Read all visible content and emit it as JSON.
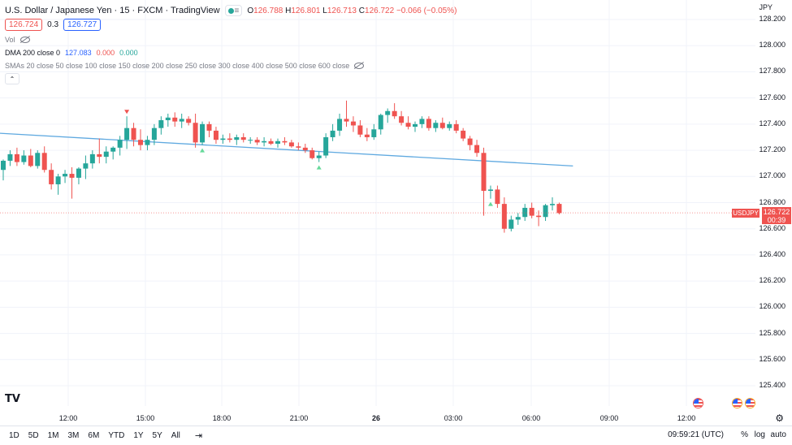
{
  "header": {
    "title": "U.S. Dollar / Japanese Yen · 15 · FXCM · TradingView",
    "lines_glyph": "≡",
    "ohlc": {
      "o_lbl": "O",
      "o": "126.788",
      "h_lbl": "H",
      "h": "126.801",
      "l_lbl": "L",
      "l": "126.713",
      "c_lbl": "C",
      "c": "126.722",
      "change": "−0.066 (−0.05%)"
    },
    "bid": "126.724",
    "spread": "0.3",
    "ask": "126.727",
    "vol_label": "Vol",
    "dma": {
      "label": "DMA 200 close 0",
      "v1": "127.083",
      "v2": "0.000",
      "v3": "0.000"
    },
    "smas_label": "SMAs 20 close 50 close 100 close 150 close 200 close 250 close 300 close 400 close 500 close 600 close",
    "collapse_glyph": "⌃"
  },
  "price_axis": {
    "currency": "JPY",
    "labels": [
      "128.200",
      "128.000",
      "127.800",
      "127.600",
      "127.400",
      "127.200",
      "127.000",
      "126.800",
      "126.600",
      "126.400",
      "126.200",
      "126.000",
      "125.800",
      "125.600",
      "125.400"
    ]
  },
  "time_axis": {
    "labels": [
      "12:00",
      "15:00",
      "18:00",
      "21:00",
      "26",
      "03:00",
      "06:00",
      "09:00",
      "12:00"
    ]
  },
  "current_price": {
    "symbol": "USDJPY",
    "price": "126.722",
    "countdown": "00:39"
  },
  "logo": "TV",
  "bottom": {
    "ranges": [
      "1D",
      "5D",
      "1M",
      "3M",
      "6M",
      "YTD",
      "1Y",
      "5Y",
      "All"
    ],
    "time": "09:59:21 (UTC)",
    "pct": "%",
    "log": "log",
    "auto": "auto"
  },
  "colors": {
    "up": "#26a69a",
    "down": "#ef5350",
    "dma": "#5fa9e0",
    "grid": "#f0f3fa"
  },
  "chart_data": {
    "type": "candlestick",
    "symbol": "USDJPY",
    "interval": "15",
    "ylim": [
      125.3,
      128.3
    ],
    "x_ticks": [
      "12:00",
      "15:00",
      "18:00",
      "21:00",
      "26",
      "03:00",
      "06:00",
      "09:00",
      "12:00"
    ],
    "candles": [
      {
        "o": 127.05,
        "h": 127.13,
        "l": 126.97,
        "c": 127.12
      },
      {
        "o": 127.12,
        "h": 127.2,
        "l": 127.08,
        "c": 127.17
      },
      {
        "o": 127.17,
        "h": 127.22,
        "l": 127.08,
        "c": 127.11
      },
      {
        "o": 127.11,
        "h": 127.2,
        "l": 127.09,
        "c": 127.16
      },
      {
        "o": 127.16,
        "h": 127.21,
        "l": 127.07,
        "c": 127.08
      },
      {
        "o": 127.08,
        "h": 127.2,
        "l": 127.06,
        "c": 127.18
      },
      {
        "o": 127.18,
        "h": 127.23,
        "l": 127.03,
        "c": 127.05
      },
      {
        "o": 127.05,
        "h": 127.1,
        "l": 126.9,
        "c": 126.94
      },
      {
        "o": 126.94,
        "h": 127.02,
        "l": 126.86,
        "c": 127.0
      },
      {
        "o": 127.0,
        "h": 127.05,
        "l": 126.95,
        "c": 127.02
      },
      {
        "o": 127.02,
        "h": 127.07,
        "l": 126.83,
        "c": 126.99
      },
      {
        "o": 126.99,
        "h": 127.07,
        "l": 126.94,
        "c": 127.06
      },
      {
        "o": 127.06,
        "h": 127.16,
        "l": 126.98,
        "c": 127.1
      },
      {
        "o": 127.1,
        "h": 127.2,
        "l": 127.06,
        "c": 127.17
      },
      {
        "o": 127.17,
        "h": 127.29,
        "l": 127.1,
        "c": 127.15
      },
      {
        "o": 127.15,
        "h": 127.23,
        "l": 127.1,
        "c": 127.19
      },
      {
        "o": 127.19,
        "h": 127.23,
        "l": 127.13,
        "c": 127.22
      },
      {
        "o": 127.22,
        "h": 127.31,
        "l": 127.16,
        "c": 127.28
      },
      {
        "o": 127.28,
        "h": 127.46,
        "l": 127.21,
        "c": 127.37
      },
      {
        "o": 127.37,
        "h": 127.41,
        "l": 127.23,
        "c": 127.28
      },
      {
        "o": 127.28,
        "h": 127.36,
        "l": 127.2,
        "c": 127.24
      },
      {
        "o": 127.24,
        "h": 127.31,
        "l": 127.2,
        "c": 127.28
      },
      {
        "o": 127.28,
        "h": 127.4,
        "l": 127.24,
        "c": 127.37
      },
      {
        "o": 127.37,
        "h": 127.46,
        "l": 127.32,
        "c": 127.43
      },
      {
        "o": 127.43,
        "h": 127.48,
        "l": 127.38,
        "c": 127.45
      },
      {
        "o": 127.45,
        "h": 127.49,
        "l": 127.38,
        "c": 127.42
      },
      {
        "o": 127.42,
        "h": 127.48,
        "l": 127.37,
        "c": 127.44
      },
      {
        "o": 127.44,
        "h": 127.46,
        "l": 127.39,
        "c": 127.41
      },
      {
        "o": 127.41,
        "h": 127.48,
        "l": 127.22,
        "c": 127.26
      },
      {
        "o": 127.26,
        "h": 127.42,
        "l": 127.24,
        "c": 127.4
      },
      {
        "o": 127.4,
        "h": 127.42,
        "l": 127.3,
        "c": 127.35
      },
      {
        "o": 127.35,
        "h": 127.38,
        "l": 127.25,
        "c": 127.28
      },
      {
        "o": 127.28,
        "h": 127.32,
        "l": 127.25,
        "c": 127.29
      },
      {
        "o": 127.29,
        "h": 127.33,
        "l": 127.26,
        "c": 127.28
      },
      {
        "o": 127.28,
        "h": 127.32,
        "l": 127.24,
        "c": 127.3
      },
      {
        "o": 127.3,
        "h": 127.33,
        "l": 127.26,
        "c": 127.28
      },
      {
        "o": 127.28,
        "h": 127.3,
        "l": 127.25,
        "c": 127.28
      },
      {
        "o": 127.28,
        "h": 127.3,
        "l": 127.24,
        "c": 127.26
      },
      {
        "o": 127.26,
        "h": 127.3,
        "l": 127.23,
        "c": 127.27
      },
      {
        "o": 127.27,
        "h": 127.29,
        "l": 127.24,
        "c": 127.25
      },
      {
        "o": 127.25,
        "h": 127.29,
        "l": 127.22,
        "c": 127.27
      },
      {
        "o": 127.27,
        "h": 127.3,
        "l": 127.24,
        "c": 127.26
      },
      {
        "o": 127.26,
        "h": 127.28,
        "l": 127.22,
        "c": 127.23
      },
      {
        "o": 127.23,
        "h": 127.26,
        "l": 127.2,
        "c": 127.22
      },
      {
        "o": 127.22,
        "h": 127.25,
        "l": 127.18,
        "c": 127.2
      },
      {
        "o": 127.2,
        "h": 127.22,
        "l": 127.13,
        "c": 127.14
      },
      {
        "o": 127.14,
        "h": 127.19,
        "l": 127.11,
        "c": 127.16
      },
      {
        "o": 127.16,
        "h": 127.33,
        "l": 127.14,
        "c": 127.3
      },
      {
        "o": 127.3,
        "h": 127.4,
        "l": 127.27,
        "c": 127.35
      },
      {
        "o": 127.35,
        "h": 127.48,
        "l": 127.31,
        "c": 127.44
      },
      {
        "o": 127.44,
        "h": 127.58,
        "l": 127.38,
        "c": 127.42
      },
      {
        "o": 127.42,
        "h": 127.46,
        "l": 127.34,
        "c": 127.39
      },
      {
        "o": 127.39,
        "h": 127.43,
        "l": 127.3,
        "c": 127.32
      },
      {
        "o": 127.32,
        "h": 127.37,
        "l": 127.27,
        "c": 127.3
      },
      {
        "o": 127.3,
        "h": 127.4,
        "l": 127.28,
        "c": 127.36
      },
      {
        "o": 127.36,
        "h": 127.48,
        "l": 127.32,
        "c": 127.47
      },
      {
        "o": 127.47,
        "h": 127.52,
        "l": 127.41,
        "c": 127.5
      },
      {
        "o": 127.5,
        "h": 127.56,
        "l": 127.44,
        "c": 127.46
      },
      {
        "o": 127.46,
        "h": 127.5,
        "l": 127.39,
        "c": 127.41
      },
      {
        "o": 127.41,
        "h": 127.46,
        "l": 127.36,
        "c": 127.38
      },
      {
        "o": 127.38,
        "h": 127.42,
        "l": 127.34,
        "c": 127.4
      },
      {
        "o": 127.4,
        "h": 127.46,
        "l": 127.37,
        "c": 127.44
      },
      {
        "o": 127.44,
        "h": 127.46,
        "l": 127.35,
        "c": 127.37
      },
      {
        "o": 127.37,
        "h": 127.43,
        "l": 127.34,
        "c": 127.41
      },
      {
        "o": 127.41,
        "h": 127.45,
        "l": 127.36,
        "c": 127.37
      },
      {
        "o": 127.37,
        "h": 127.42,
        "l": 127.35,
        "c": 127.4
      },
      {
        "o": 127.4,
        "h": 127.43,
        "l": 127.33,
        "c": 127.35
      },
      {
        "o": 127.35,
        "h": 127.37,
        "l": 127.27,
        "c": 127.29
      },
      {
        "o": 127.29,
        "h": 127.31,
        "l": 127.2,
        "c": 127.24
      },
      {
        "o": 127.24,
        "h": 127.28,
        "l": 127.15,
        "c": 127.18
      },
      {
        "o": 127.18,
        "h": 127.22,
        "l": 126.7,
        "c": 126.89
      },
      {
        "o": 126.89,
        "h": 126.93,
        "l": 126.83,
        "c": 126.9
      },
      {
        "o": 126.9,
        "h": 126.93,
        "l": 126.76,
        "c": 126.79
      },
      {
        "o": 126.79,
        "h": 126.84,
        "l": 126.57,
        "c": 126.6
      },
      {
        "o": 126.6,
        "h": 126.7,
        "l": 126.58,
        "c": 126.67
      },
      {
        "o": 126.67,
        "h": 126.72,
        "l": 126.63,
        "c": 126.69
      },
      {
        "o": 126.69,
        "h": 126.79,
        "l": 126.66,
        "c": 126.76
      },
      {
        "o": 126.76,
        "h": 126.8,
        "l": 126.68,
        "c": 126.7
      },
      {
        "o": 126.7,
        "h": 126.74,
        "l": 126.62,
        "c": 126.69
      },
      {
        "o": 126.69,
        "h": 126.79,
        "l": 126.66,
        "c": 126.78
      },
      {
        "o": 126.78,
        "h": 126.84,
        "l": 126.74,
        "c": 126.79
      },
      {
        "o": 126.79,
        "h": 126.8,
        "l": 126.71,
        "c": 126.72
      }
    ],
    "dma_line": {
      "label": "DMA 200 close 0",
      "start": 127.33,
      "end": 127.08
    },
    "markers": [
      {
        "index": 18,
        "type": "down"
      },
      {
        "index": 29,
        "type": "up"
      },
      {
        "index": 46,
        "type": "up"
      },
      {
        "index": 71,
        "type": "up"
      }
    ],
    "last_price": 126.722
  }
}
